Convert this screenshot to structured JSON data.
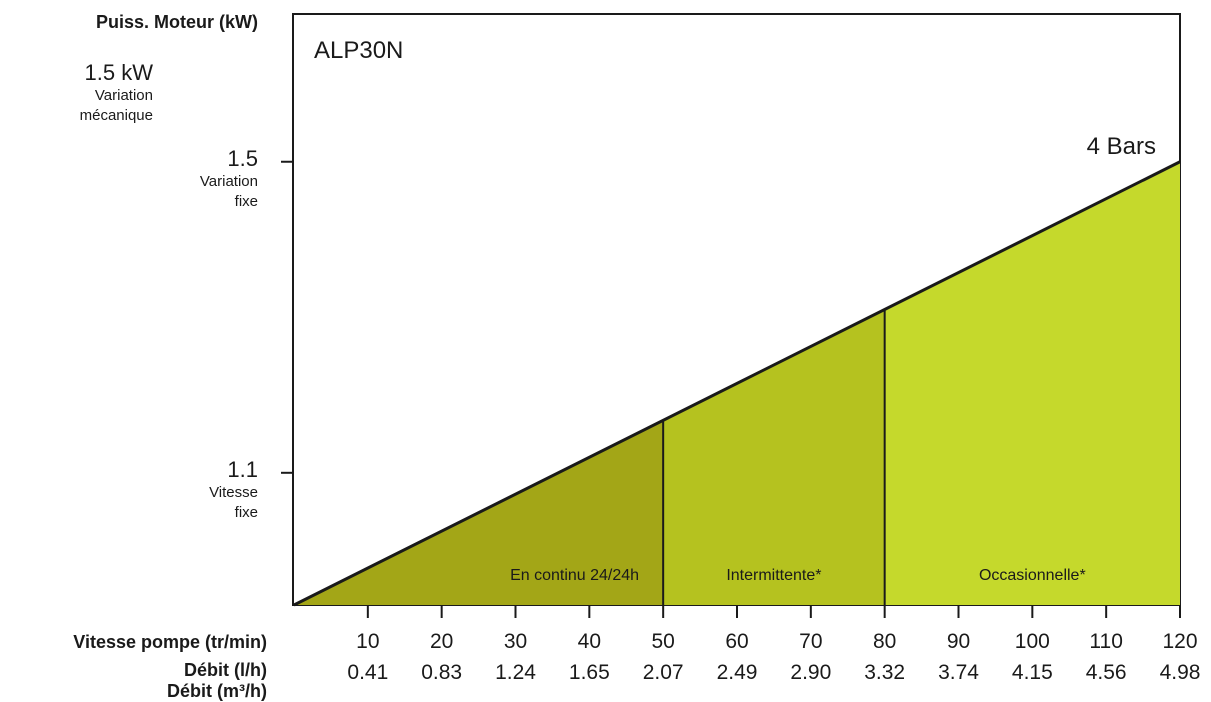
{
  "chart_data": {
    "type": "area",
    "title": "ALP30N",
    "y_axis_title": "Puiss. Moteur (kW)",
    "top_note": {
      "value": "1.5 kW",
      "lines": [
        "Variation",
        "mécanique"
      ]
    },
    "y_ticks": [
      {
        "value": 1.5,
        "label": "1.5",
        "lines": [
          "Variation",
          "fixe"
        ]
      },
      {
        "value": 1.1,
        "label": "1.1",
        "lines": [
          "Vitesse",
          "fixe"
        ]
      }
    ],
    "x_axis_rows": [
      "Vitesse pompe (tr/min)",
      "Débit (l/h)",
      "Débit (m³/h)"
    ],
    "x_ticks": [
      10,
      20,
      30,
      40,
      50,
      60,
      70,
      80,
      90,
      100,
      110,
      120
    ],
    "flow_m3h": [
      "0.41",
      "0.83",
      "1.24",
      "1.65",
      "2.07",
      "2.49",
      "2.90",
      "3.32",
      "3.74",
      "4.15",
      "4.56",
      "4.98"
    ],
    "series": [
      {
        "name": "4 Bars",
        "x": [
          0,
          120
        ],
        "y": [
          0.93,
          1.5
        ]
      }
    ],
    "zones": [
      {
        "label": "En continu 24/24h",
        "from": 0,
        "to": 50,
        "color": "#a3a617"
      },
      {
        "label": "Intermittente*",
        "from": 50,
        "to": 80,
        "color": "#b5c21f"
      },
      {
        "label": "Occasionnelle*",
        "from": 80,
        "to": 120,
        "color": "#c5d92c"
      }
    ],
    "xlim": [
      0,
      120
    ],
    "ylim": [
      0.93,
      1.69
    ],
    "grid": false
  }
}
